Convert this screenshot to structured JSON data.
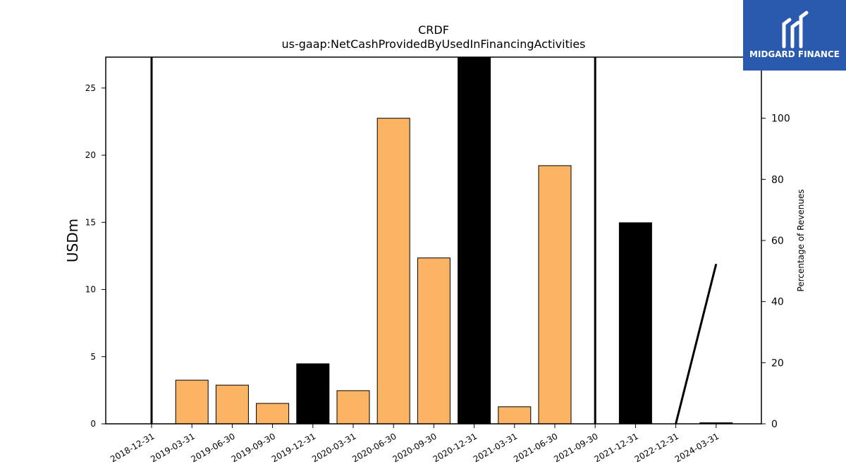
{
  "logo": {
    "text": "MIDGARD FINANCE",
    "bg_color": "#2a5aad"
  },
  "chart_data": {
    "type": "bar",
    "title": "CRDF",
    "subtitle": "us-gaap:NetCashProvidedByUsedInFinancingActivities",
    "ylabel": "USDm",
    "y2label": "Percentage of Revenues",
    "categories": [
      "2018-12-31",
      "2019-03-31",
      "2019-06-30",
      "2019-09-30",
      "2019-12-31",
      "2020-03-31",
      "2020-06-30",
      "2020-09-30",
      "2020-12-31",
      "2021-03-31",
      "2021-06-30",
      "2021-09-30",
      "2021-12-31",
      "2022-12-31",
      "2024-03-31"
    ],
    "values": [
      0,
      3.25,
      2.88,
      1.52,
      4.47,
      2.47,
      22.75,
      12.35,
      27.3,
      1.27,
      19.22,
      0,
      14.97,
      0,
      0.08
    ],
    "bar_colors": [
      "#fbb463",
      "#fbb463",
      "#fbb463",
      "#fbb463",
      "#000000",
      "#fbb463",
      "#fbb463",
      "#fbb463",
      "#000000",
      "#fbb463",
      "#fbb463",
      "#fbb463",
      "#000000",
      "#fbb463",
      "#000000"
    ],
    "ylim": [
      0,
      27.3
    ],
    "yticks": [
      0,
      5,
      10,
      15,
      20,
      25
    ],
    "y2lim": [
      0,
      120
    ],
    "y2ticks": [
      0,
      20,
      40,
      60,
      80,
      100
    ],
    "line_series": {
      "values": [
        122,
        0,
        null,
        null,
        null,
        null,
        null,
        null,
        null,
        null,
        null,
        122,
        0,
        0,
        52.3
      ],
      "segments": [
        [
          0,
          0
        ],
        [
          11,
          11
        ],
        [
          13,
          14
        ]
      ],
      "color": "#000000"
    }
  }
}
